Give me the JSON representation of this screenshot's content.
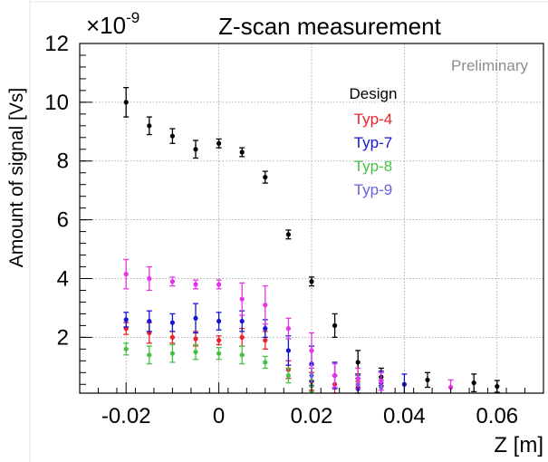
{
  "chart_data": {
    "type": "scatter",
    "title": "Z-scan measurement",
    "exponent_label": "×10",
    "exponent_power": "-9",
    "xlabel": "Z [m]",
    "ylabel": "Amount of signal [Vs]",
    "watermark": "Preliminary",
    "legend_title": "Design",
    "legend_placement": "upper-center",
    "grid": true,
    "xlim": [
      -0.03,
      0.07
    ],
    "ylim": [
      0.1,
      12
    ],
    "x_ticks": [
      -0.02,
      0,
      0.02,
      0.04,
      0.06
    ],
    "x_tick_labels": [
      "-0.02",
      "0",
      "0.02",
      "0.04",
      "0.06"
    ],
    "y_ticks": [
      2,
      4,
      6,
      8,
      10,
      12
    ],
    "y_tick_labels": [
      "2",
      "4",
      "6",
      "8",
      "10",
      "12"
    ],
    "series": [
      {
        "name": "",
        "color": "#000000",
        "points": [
          {
            "x": -0.02,
            "y": 10.0,
            "err": 0.5
          },
          {
            "x": -0.015,
            "y": 9.2,
            "err": 0.3
          },
          {
            "x": -0.01,
            "y": 8.85,
            "err": 0.25
          },
          {
            "x": -0.005,
            "y": 8.4,
            "err": 0.3
          },
          {
            "x": 0.0,
            "y": 8.6,
            "err": 0.15
          },
          {
            "x": 0.005,
            "y": 8.3,
            "err": 0.15
          },
          {
            "x": 0.01,
            "y": 7.45,
            "err": 0.2
          },
          {
            "x": 0.015,
            "y": 5.5,
            "err": 0.15
          },
          {
            "x": 0.02,
            "y": 3.9,
            "err": 0.15
          },
          {
            "x": 0.025,
            "y": 2.4,
            "err": 0.4
          },
          {
            "x": 0.03,
            "y": 1.15,
            "err": 0.4
          },
          {
            "x": 0.035,
            "y": 0.65,
            "err": 0.3
          },
          {
            "x": 0.045,
            "y": 0.55,
            "err": 0.25
          },
          {
            "x": 0.055,
            "y": 0.45,
            "err": 0.3
          },
          {
            "x": 0.06,
            "y": 0.33,
            "err": 0.2
          }
        ]
      },
      {
        "name": "Typ-4",
        "color": "#e8242a",
        "points": [
          {
            "x": -0.02,
            "y": 2.3,
            "err": 0.2
          },
          {
            "x": -0.015,
            "y": 2.15,
            "err": 0.35
          },
          {
            "x": -0.01,
            "y": 2.0,
            "err": 0.2
          },
          {
            "x": -0.005,
            "y": 1.95,
            "err": 0.25
          },
          {
            "x": 0.0,
            "y": 1.9,
            "err": 0.15
          },
          {
            "x": 0.005,
            "y": 2.0,
            "err": 0.3
          },
          {
            "x": 0.01,
            "y": 1.9,
            "err": 0.3
          },
          {
            "x": 0.015,
            "y": 0.9,
            "err": 0.3
          },
          {
            "x": 0.02,
            "y": 0.5,
            "err": 0.3
          },
          {
            "x": 0.025,
            "y": 0.4,
            "err": 0.3
          },
          {
            "x": 0.03,
            "y": 0.3,
            "err": 0.2
          }
        ]
      },
      {
        "name": "Typ-7",
        "color": "#1414d2",
        "points": [
          {
            "x": -0.02,
            "y": 2.6,
            "err": 0.25
          },
          {
            "x": -0.015,
            "y": 2.55,
            "err": 0.35
          },
          {
            "x": -0.01,
            "y": 2.5,
            "err": 0.3
          },
          {
            "x": -0.005,
            "y": 2.65,
            "err": 0.5
          },
          {
            "x": 0.0,
            "y": 2.55,
            "err": 0.3
          },
          {
            "x": 0.005,
            "y": 2.55,
            "err": 0.35
          },
          {
            "x": 0.01,
            "y": 2.3,
            "err": 0.3
          },
          {
            "x": 0.015,
            "y": 1.55,
            "err": 0.5
          },
          {
            "x": 0.02,
            "y": 1.1,
            "err": 0.6
          },
          {
            "x": 0.025,
            "y": 0.7,
            "err": 0.45
          },
          {
            "x": 0.03,
            "y": 0.25,
            "err": 0.35
          },
          {
            "x": 0.035,
            "y": 0.45,
            "err": 0.4
          },
          {
            "x": 0.04,
            "y": 0.4,
            "err": 0.35
          }
        ]
      },
      {
        "name": "Typ-8",
        "color": "#44c244",
        "points": [
          {
            "x": -0.02,
            "y": 1.6,
            "err": 0.2
          },
          {
            "x": -0.015,
            "y": 1.4,
            "err": 0.3
          },
          {
            "x": -0.01,
            "y": 1.45,
            "err": 0.3
          },
          {
            "x": -0.005,
            "y": 1.5,
            "err": 0.25
          },
          {
            "x": 0.0,
            "y": 1.45,
            "err": 0.2
          },
          {
            "x": 0.005,
            "y": 1.4,
            "err": 0.3
          },
          {
            "x": 0.01,
            "y": 1.15,
            "err": 0.2
          },
          {
            "x": 0.015,
            "y": 0.7,
            "err": 0.25
          },
          {
            "x": 0.02,
            "y": 0.35,
            "err": 0.2
          }
        ]
      },
      {
        "name": "Typ-9",
        "color": "#6464dc",
        "points": [
          {
            "x": 0.02,
            "y": 0.7,
            "err": 0.35
          },
          {
            "x": 0.03,
            "y": 0.4,
            "err": 0.3
          },
          {
            "x": 0.035,
            "y": 0.3,
            "err": 0.25
          }
        ]
      },
      {
        "name": "",
        "color": "#e632e6",
        "points": [
          {
            "x": -0.02,
            "y": 4.15,
            "err": 0.5
          },
          {
            "x": -0.015,
            "y": 4.0,
            "err": 0.4
          },
          {
            "x": -0.01,
            "y": 3.9,
            "err": 0.15
          },
          {
            "x": -0.005,
            "y": 3.8,
            "err": 0.15
          },
          {
            "x": 0.0,
            "y": 3.8,
            "err": 0.15
          },
          {
            "x": 0.005,
            "y": 3.3,
            "err": 0.55
          },
          {
            "x": 0.01,
            "y": 3.1,
            "err": 0.65
          },
          {
            "x": 0.015,
            "y": 2.3,
            "err": 0.35
          },
          {
            "x": 0.02,
            "y": 1.55,
            "err": 0.6
          },
          {
            "x": 0.025,
            "y": 0.7,
            "err": 0.4
          },
          {
            "x": 0.03,
            "y": 0.6,
            "err": 0.35
          },
          {
            "x": 0.035,
            "y": 0.5,
            "err": 0.3
          },
          {
            "x": 0.05,
            "y": 0.3,
            "err": 0.25
          }
        ]
      }
    ]
  }
}
